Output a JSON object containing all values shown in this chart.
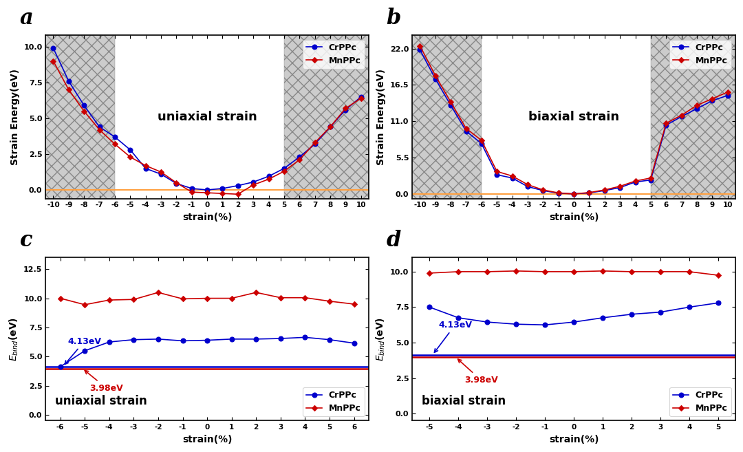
{
  "panel_a": {
    "title": "uniaxial strain",
    "ylabel": "Strain Energy(eV)",
    "xlabel": "strain(%)",
    "xlim": [
      -10.5,
      10.5
    ],
    "ylim": [
      -0.6,
      10.8
    ],
    "yticks": [
      0.0,
      2.5,
      5.0,
      7.5,
      10.0
    ],
    "xticks": [
      -10,
      -9,
      -8,
      -7,
      -6,
      -5,
      -4,
      -3,
      -2,
      -1,
      0,
      1,
      2,
      3,
      4,
      5,
      6,
      7,
      8,
      9,
      10
    ],
    "hatch_left_x0": -10.5,
    "hatch_left_x1": -6.0,
    "hatch_right_x0": 5.0,
    "hatch_right_x1": 10.5,
    "orange_y": 0.0,
    "cr_x": [
      -10,
      -9,
      -8,
      -7,
      -6,
      -5,
      -4,
      -3,
      -2,
      -1,
      0,
      1,
      2,
      3,
      4,
      5,
      6,
      7,
      8,
      9,
      10
    ],
    "cr_y": [
      9.9,
      7.6,
      5.9,
      4.4,
      3.7,
      2.8,
      1.5,
      1.1,
      0.45,
      0.1,
      0.0,
      0.1,
      0.3,
      0.55,
      0.95,
      1.5,
      2.3,
      3.2,
      4.4,
      5.6,
      6.5
    ],
    "mn_x": [
      -10,
      -9,
      -8,
      -7,
      -6,
      -5,
      -4,
      -3,
      -2,
      -1,
      0,
      1,
      2,
      3,
      4,
      5,
      6,
      7,
      8,
      9,
      10
    ],
    "mn_y": [
      9.0,
      7.0,
      5.5,
      4.2,
      3.2,
      2.3,
      1.7,
      1.25,
      0.5,
      -0.15,
      -0.2,
      -0.25,
      -0.3,
      0.35,
      0.75,
      1.3,
      2.1,
      3.3,
      4.4,
      5.7,
      6.4
    ]
  },
  "panel_b": {
    "title": "biaxial strain",
    "ylabel": "Strain Energy(eV)",
    "xlabel": "strain(%)",
    "xlim": [
      -10.5,
      10.5
    ],
    "ylim": [
      -0.7,
      24.0
    ],
    "yticks": [
      0.0,
      5.5,
      11.0,
      16.5,
      22.0
    ],
    "xticks": [
      -10,
      -9,
      -8,
      -7,
      -6,
      -5,
      -4,
      -3,
      -2,
      -1,
      0,
      1,
      2,
      3,
      4,
      5,
      6,
      7,
      8,
      9,
      10
    ],
    "hatch_left_x0": -10.5,
    "hatch_left_x1": -6.0,
    "hatch_right_x0": 5.0,
    "hatch_right_x1": 10.5,
    "orange_y": 0.0,
    "cr_x": [
      -10,
      -9,
      -8,
      -7,
      -6,
      -5,
      -4,
      -3,
      -2,
      -1,
      0,
      1,
      2,
      3,
      4,
      5,
      6,
      7,
      8,
      9,
      10
    ],
    "cr_y": [
      21.8,
      17.4,
      13.4,
      9.5,
      7.6,
      2.9,
      2.4,
      1.1,
      0.5,
      0.1,
      0.0,
      0.15,
      0.5,
      0.95,
      1.8,
      2.1,
      10.4,
      11.7,
      12.9,
      14.1,
      14.9
    ],
    "mn_x": [
      -10,
      -9,
      -8,
      -7,
      -6,
      -5,
      -4,
      -3,
      -2,
      -1,
      0,
      1,
      2,
      3,
      4,
      5,
      6,
      7,
      8,
      9,
      10
    ],
    "mn_y": [
      22.4,
      17.9,
      13.9,
      9.9,
      8.1,
      3.4,
      2.7,
      1.4,
      0.6,
      0.15,
      0.0,
      0.2,
      0.6,
      1.15,
      1.95,
      2.4,
      10.7,
      11.9,
      13.4,
      14.4,
      15.4
    ]
  },
  "panel_c": {
    "title": "uniaxial strain",
    "ylabel": "E_bind(eV)",
    "xlabel": "strain(%)",
    "xlim": [
      -6.6,
      6.6
    ],
    "ylim": [
      -0.5,
      13.5
    ],
    "yticks": [
      0.0,
      2.5,
      5.0,
      7.5,
      10.0,
      12.5
    ],
    "xticks": [
      -6,
      -5,
      -4,
      -3,
      -2,
      -1,
      0,
      1,
      2,
      3,
      4,
      5,
      6
    ],
    "blue_hline": 4.13,
    "red_hline": 3.98,
    "blue_label": "4.13eV",
    "red_label": "3.98eV",
    "cr_x": [
      -6,
      -5,
      -4,
      -3,
      -2,
      -1,
      0,
      1,
      2,
      3,
      4,
      5,
      6
    ],
    "cr_y": [
      4.13,
      5.5,
      6.25,
      6.45,
      6.5,
      6.35,
      6.4,
      6.5,
      6.5,
      6.55,
      6.65,
      6.45,
      6.15
    ],
    "mn_x": [
      -6,
      -5,
      -4,
      -3,
      -2,
      -1,
      0,
      1,
      2,
      3,
      4,
      5,
      6
    ],
    "mn_y": [
      10.0,
      9.45,
      9.85,
      9.9,
      10.5,
      9.95,
      10.0,
      10.0,
      10.5,
      10.05,
      10.05,
      9.75,
      9.5
    ]
  },
  "panel_d": {
    "title": "biaxial strain",
    "ylabel": "E_bind(eV)",
    "xlabel": "strain(%)",
    "xlim": [
      -5.6,
      5.6
    ],
    "ylim": [
      -0.5,
      11.0
    ],
    "yticks": [
      0.0,
      2.5,
      5.0,
      7.5,
      10.0
    ],
    "xticks": [
      -5,
      -4,
      -3,
      -2,
      -1,
      0,
      1,
      2,
      3,
      4,
      5
    ],
    "blue_hline": 4.13,
    "red_hline": 3.98,
    "blue_label": "4.13eV",
    "red_label": "3.98eV",
    "cr_x": [
      -5,
      -4,
      -3,
      -2,
      -1,
      0,
      1,
      2,
      3,
      4,
      5
    ],
    "cr_y": [
      7.5,
      6.75,
      6.45,
      6.3,
      6.25,
      6.45,
      6.75,
      7.0,
      7.15,
      7.5,
      7.8
    ],
    "mn_x": [
      -5,
      -4,
      -3,
      -2,
      -1,
      0,
      1,
      2,
      3,
      4,
      5
    ],
    "mn_y": [
      9.9,
      10.0,
      10.0,
      10.05,
      10.0,
      10.0,
      10.05,
      10.0,
      10.0,
      10.0,
      9.75
    ]
  },
  "colors": {
    "blue": "#0000CD",
    "red": "#CC0000",
    "orange": "#FFA040",
    "hatch_bg": "#CCCCCC",
    "hatch_edge": "#888888"
  }
}
